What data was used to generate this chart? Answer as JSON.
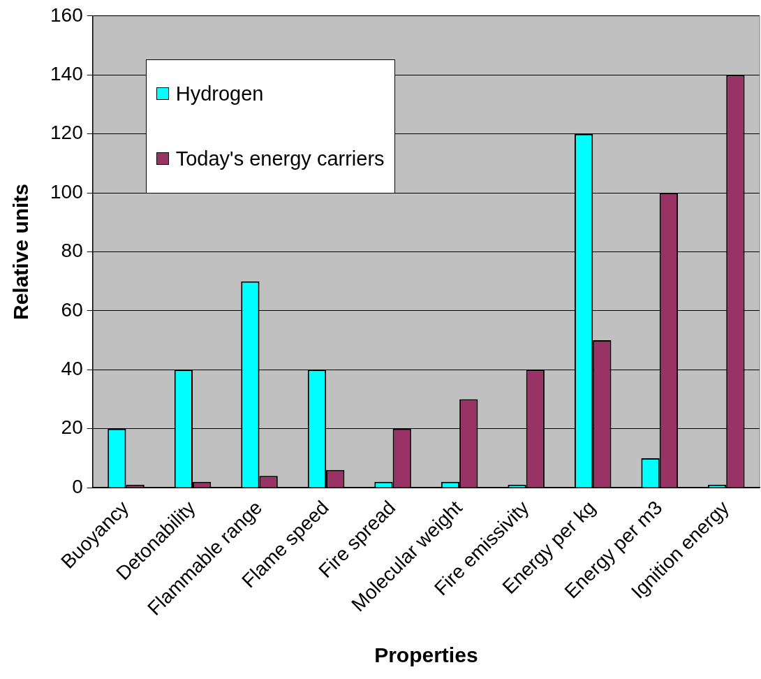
{
  "chart_data": {
    "type": "bar",
    "xlabel": "Properties",
    "ylabel": "Relative units",
    "categories": [
      "Buoyancy",
      "Detonability",
      "Flammable range",
      "Flame speed",
      "Fire spread",
      "Molecular weight",
      "Fire emissivity",
      "Energy per kg",
      "Energy per m3",
      "Ignition energy"
    ],
    "series": [
      {
        "name": "Hydrogen",
        "color": "#00ffff",
        "values": [
          20,
          40,
          70,
          40,
          2,
          2,
          1,
          120,
          10,
          1
        ]
      },
      {
        "name": "Today's energy carriers",
        "color": "#993366",
        "values": [
          1,
          2,
          4,
          6,
          20,
          30,
          40,
          50,
          100,
          140
        ]
      }
    ],
    "ylim": [
      0,
      160
    ],
    "yticks": [
      0,
      20,
      40,
      60,
      80,
      100,
      120,
      140,
      160
    ],
    "grid": "y",
    "legend": "top left"
  }
}
